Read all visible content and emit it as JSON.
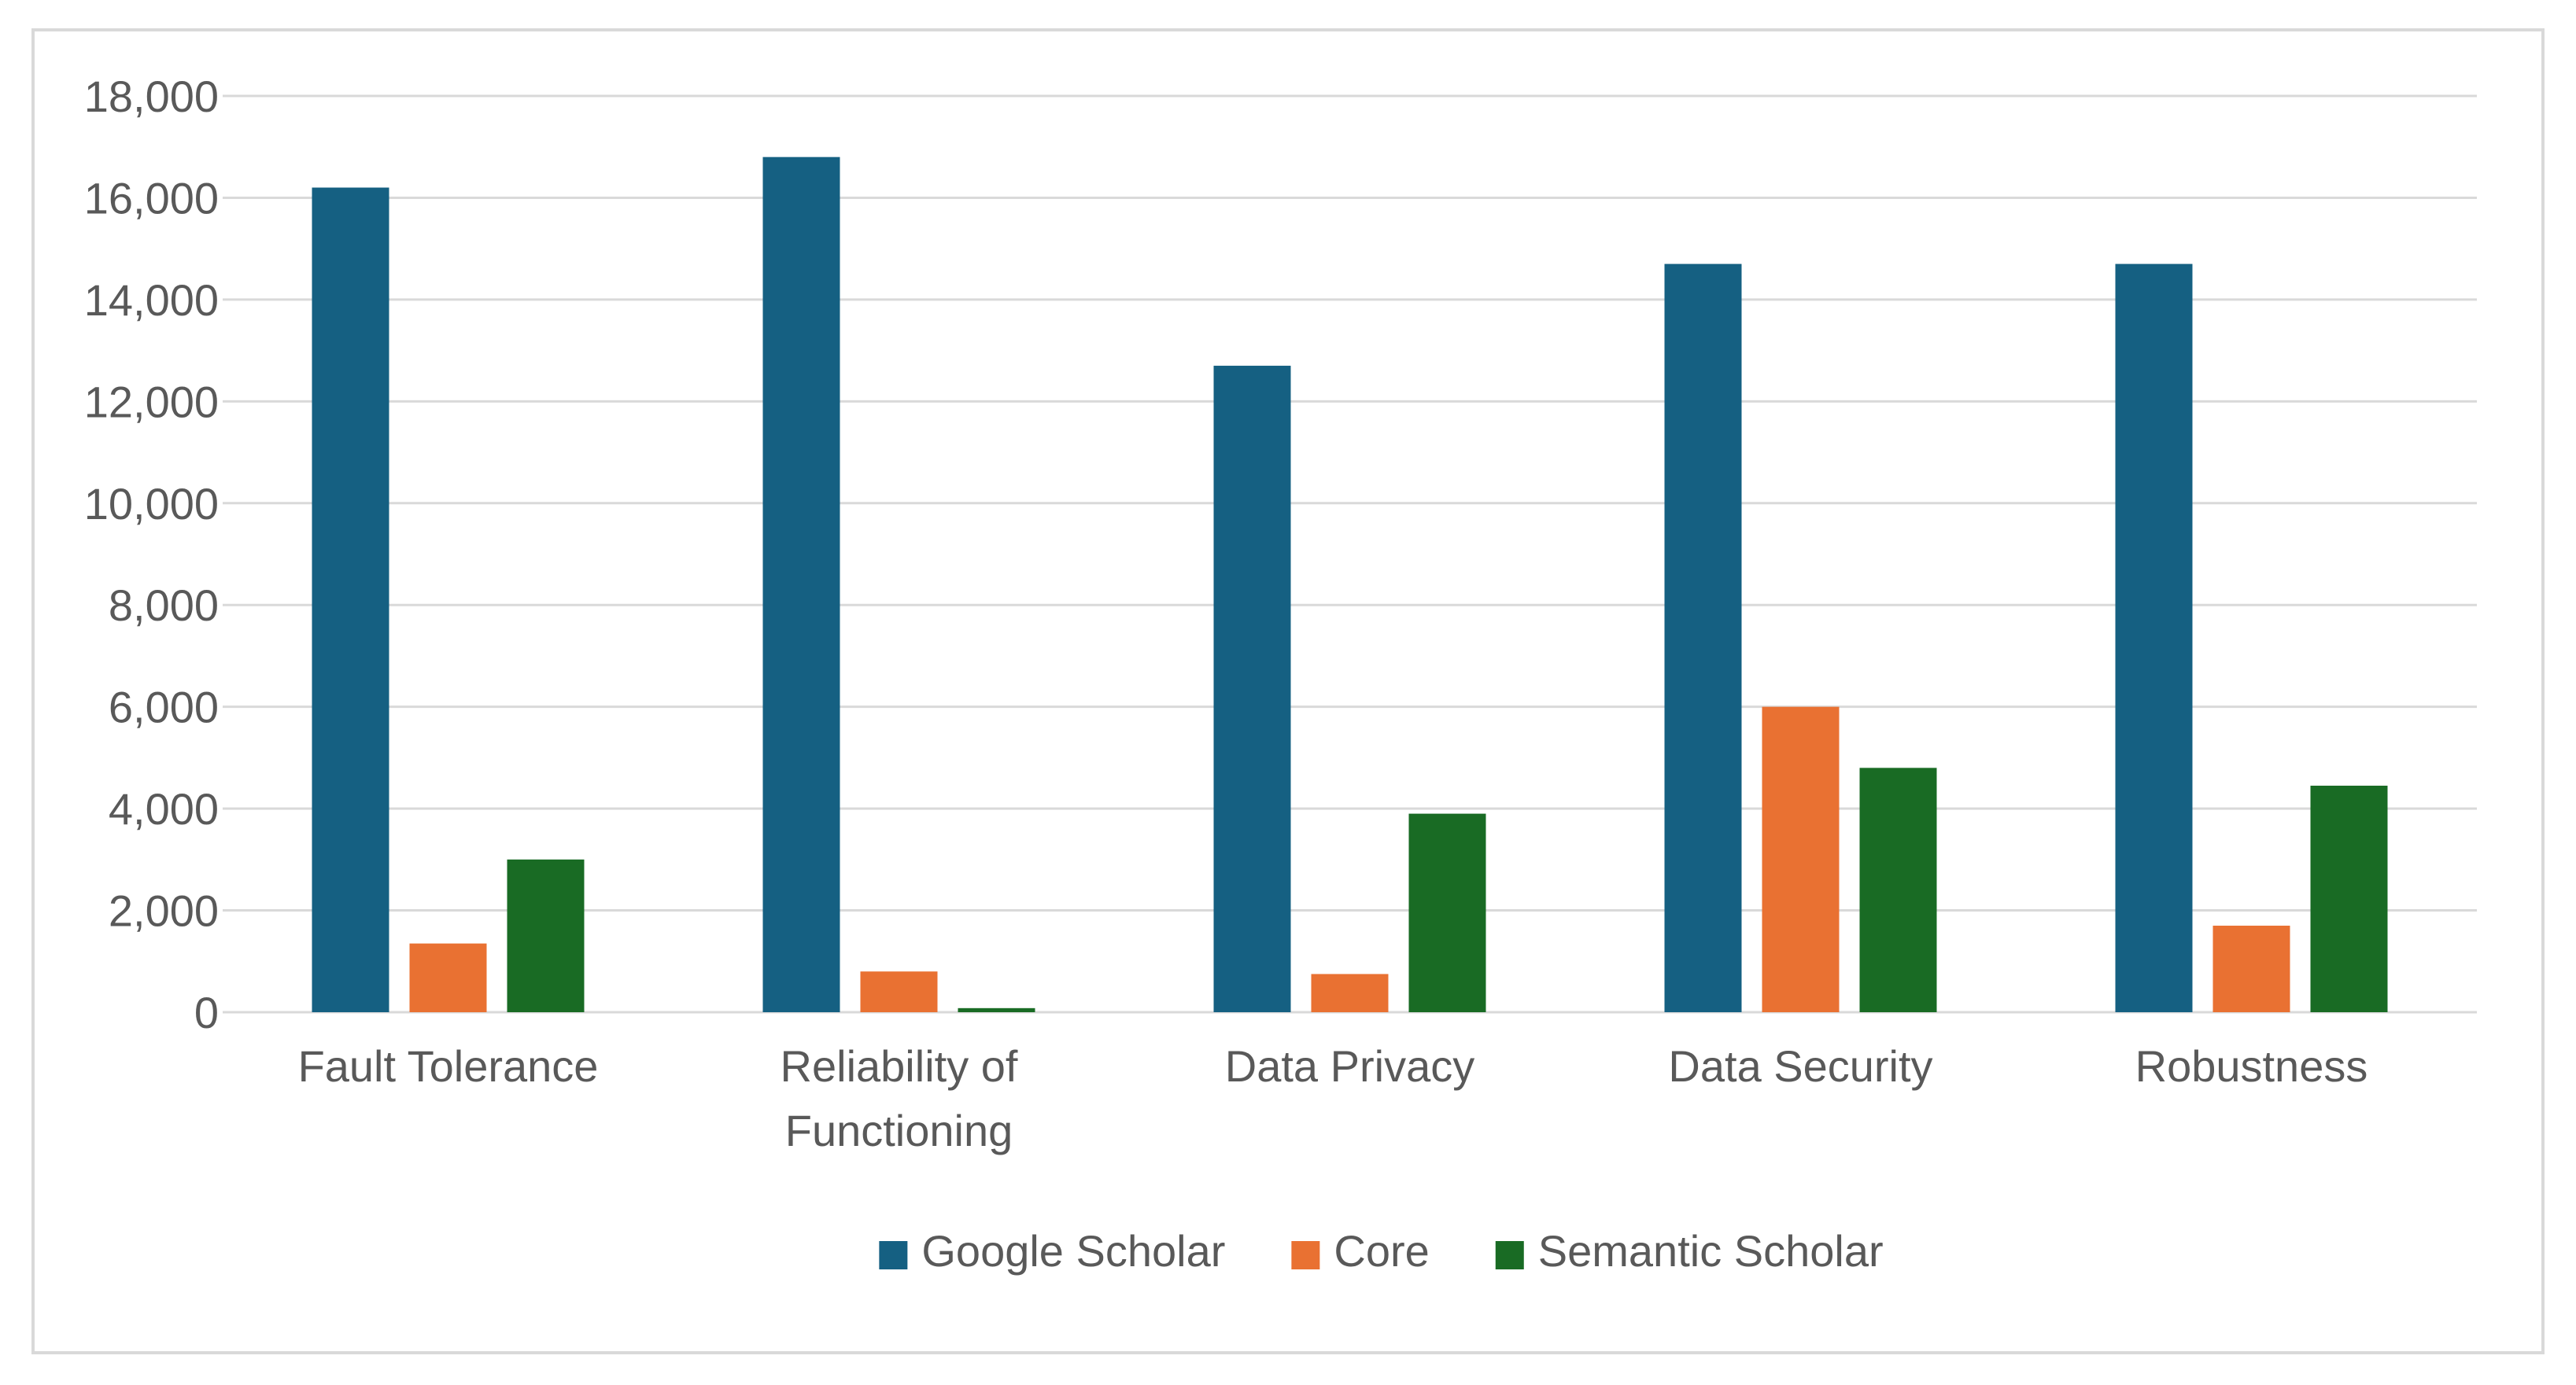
{
  "chart_data": {
    "type": "bar",
    "title": "",
    "xlabel": "",
    "ylabel": "",
    "categories": [
      [
        "Fault Tolerance"
      ],
      [
        "Reliability of",
        "Functioning"
      ],
      [
        "Data Privacy"
      ],
      [
        "Data Security"
      ],
      [
        "Robustness"
      ]
    ],
    "category_names": [
      "Fault Tolerance",
      "Reliability of Functioning",
      "Data Privacy",
      "Data Security",
      "Robustness"
    ],
    "series": [
      {
        "name": "Google Scholar",
        "color": "#156082",
        "values": [
          16200,
          16800,
          12700,
          14700,
          14700
        ]
      },
      {
        "name": "Core",
        "color": "#E97132",
        "values": [
          1350,
          800,
          750,
          6000,
          1700
        ]
      },
      {
        "name": "Semantic Scholar",
        "color": "#196B24",
        "values": [
          3000,
          80,
          3900,
          4800,
          4450
        ]
      }
    ],
    "ylim": [
      0,
      18000
    ],
    "yticks": [
      0,
      2000,
      4000,
      6000,
      8000,
      10000,
      12000,
      14000,
      16000,
      18000
    ],
    "ytick_labels": [
      "0",
      "2,000",
      "4,000",
      "6,000",
      "8,000",
      "10,000",
      "12,000",
      "14,000",
      "16,000",
      "18,000"
    ],
    "grid": true,
    "legend_position": "bottom",
    "gridline_color": "#d9d9d9",
    "label_color": "#595959"
  }
}
